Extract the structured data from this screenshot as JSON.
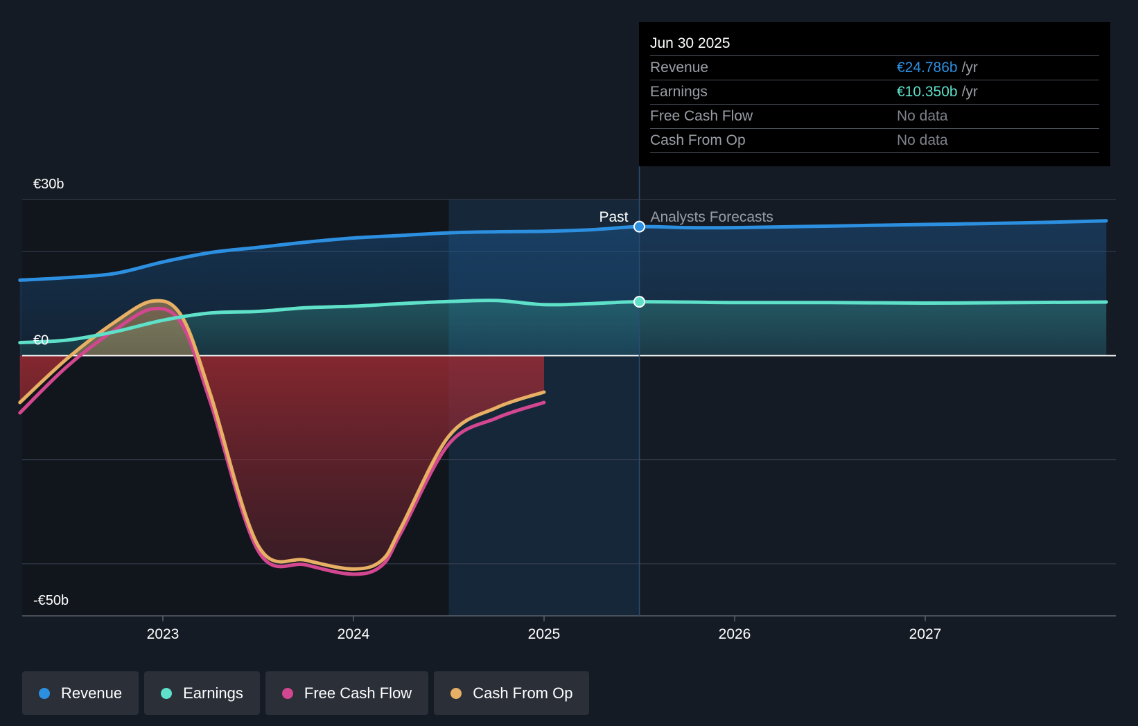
{
  "chart_data": {
    "type": "area",
    "y_ticks": [
      {
        "value": 30,
        "label": "€30b"
      },
      {
        "value": 0,
        "label": "€0"
      },
      {
        "value": -50,
        "label": "-€50b"
      }
    ],
    "ylim": [
      -50,
      30
    ],
    "xlim": [
      2022.5,
      2027.95
    ],
    "x_ticks": [
      {
        "value": 2023,
        "label": "2023"
      },
      {
        "value": 2024,
        "label": "2024"
      },
      {
        "value": 2025,
        "label": "2025"
      },
      {
        "value": 2026,
        "label": "2026"
      },
      {
        "value": 2027,
        "label": "2027"
      }
    ],
    "past_label": "Past",
    "forecast_label": "Analysts Forecasts",
    "divider_x": 2025.5,
    "series": [
      {
        "name": "Revenue",
        "color": "#2d8fe0",
        "points": [
          [
            2022.25,
            14.5
          ],
          [
            2022.5,
            15
          ],
          [
            2022.75,
            15.8
          ],
          [
            2023.0,
            18
          ],
          [
            2023.25,
            19.8
          ],
          [
            2023.5,
            20.8
          ],
          [
            2023.75,
            21.8
          ],
          [
            2024.0,
            22.6
          ],
          [
            2024.25,
            23.1
          ],
          [
            2024.5,
            23.6
          ],
          [
            2024.75,
            23.8
          ],
          [
            2025.0,
            23.9
          ],
          [
            2025.25,
            24.2
          ],
          [
            2025.5,
            24.786
          ],
          [
            2025.75,
            24.6
          ],
          [
            2026.0,
            24.6
          ],
          [
            2026.5,
            24.9
          ],
          [
            2027.0,
            25.2
          ],
          [
            2027.5,
            25.5
          ],
          [
            2027.95,
            25.9
          ]
        ]
      },
      {
        "name": "Earnings",
        "color": "#5ee0c9",
        "points": [
          [
            2022.25,
            2.5
          ],
          [
            2022.5,
            3.0
          ],
          [
            2022.75,
            4.6
          ],
          [
            2023.0,
            6.8
          ],
          [
            2023.25,
            8.2
          ],
          [
            2023.5,
            8.5
          ],
          [
            2023.75,
            9.2
          ],
          [
            2024.0,
            9.5
          ],
          [
            2024.25,
            10.0
          ],
          [
            2024.5,
            10.4
          ],
          [
            2024.75,
            10.6
          ],
          [
            2025.0,
            9.8
          ],
          [
            2025.25,
            10.0
          ],
          [
            2025.5,
            10.35
          ],
          [
            2026.0,
            10.2
          ],
          [
            2026.5,
            10.2
          ],
          [
            2027.0,
            10.1
          ],
          [
            2027.5,
            10.2
          ],
          [
            2027.95,
            10.3
          ]
        ]
      },
      {
        "name": "Free Cash Flow",
        "color": "#d2478f",
        "points": [
          [
            2022.25,
            -11
          ],
          [
            2022.5,
            -2
          ],
          [
            2022.75,
            5
          ],
          [
            2022.95,
            9
          ],
          [
            2023.1,
            6
          ],
          [
            2023.25,
            -9
          ],
          [
            2023.5,
            -37.5
          ],
          [
            2023.75,
            -40.2
          ],
          [
            2024.0,
            -42
          ],
          [
            2024.15,
            -40.3
          ],
          [
            2024.25,
            -34
          ],
          [
            2024.5,
            -17
          ],
          [
            2024.75,
            -12
          ],
          [
            2025.0,
            -9
          ]
        ]
      },
      {
        "name": "Cash From Op",
        "color": "#e8b064",
        "points": [
          [
            2022.25,
            -9
          ],
          [
            2022.5,
            -0.5
          ],
          [
            2022.75,
            6.5
          ],
          [
            2022.95,
            10.5
          ],
          [
            2023.1,
            7.5
          ],
          [
            2023.25,
            -7.5
          ],
          [
            2023.5,
            -36.5
          ],
          [
            2023.75,
            -39.3
          ],
          [
            2024.0,
            -41
          ],
          [
            2024.15,
            -39.3
          ],
          [
            2024.25,
            -33
          ],
          [
            2024.5,
            -15.5
          ],
          [
            2024.75,
            -10
          ],
          [
            2025.0,
            -7
          ]
        ]
      }
    ]
  },
  "tooltip": {
    "date": "Jun 30 2025",
    "rows": [
      {
        "label": "Revenue",
        "value": "€24.786b",
        "unit": "/yr",
        "color": "#2d8fe0"
      },
      {
        "label": "Earnings",
        "value": "€10.350b",
        "unit": "/yr",
        "color": "#5ee0c9"
      },
      {
        "label": "Free Cash Flow",
        "value": "No data",
        "unit": "",
        "color": "#7d8189"
      },
      {
        "label": "Cash From Op",
        "value": "No data",
        "unit": "",
        "color": "#7d8189"
      }
    ]
  },
  "legend": [
    {
      "label": "Revenue",
      "color": "#2d8fe0"
    },
    {
      "label": "Earnings",
      "color": "#5ee0c9"
    },
    {
      "label": "Free Cash Flow",
      "color": "#d2478f"
    },
    {
      "label": "Cash From Op",
      "color": "#e8b064"
    }
  ]
}
